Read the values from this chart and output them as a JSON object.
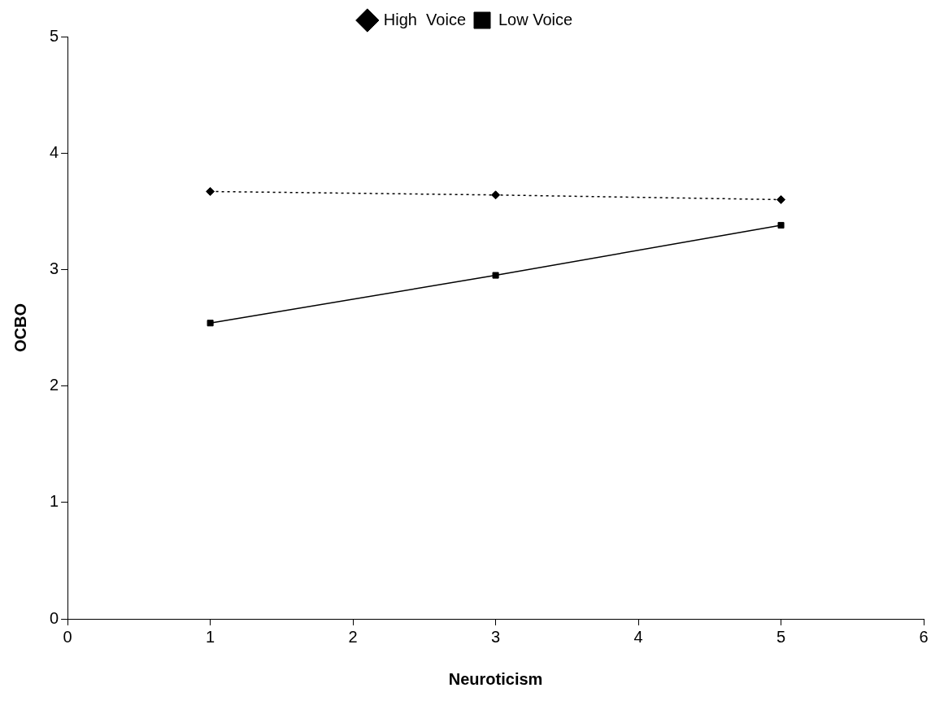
{
  "chart_data": {
    "type": "line",
    "xlabel": "Neuroticism",
    "ylabel": "OCBO",
    "xlim": [
      0,
      6
    ],
    "xticks": [
      0,
      1,
      2,
      3,
      4,
      5,
      6
    ],
    "ylim": [
      0,
      5
    ],
    "yticks": [
      0,
      1,
      2,
      3,
      4,
      5
    ],
    "grid": false,
    "legend": "top",
    "series": [
      {
        "name": "High  Voice",
        "color": "#000000",
        "x": [
          1,
          3,
          5
        ],
        "values": [
          3.67,
          3.64,
          3.6
        ],
        "marker": "diamond",
        "line_style": "dotted"
      },
      {
        "name": "Low Voice",
        "color": "#000000",
        "x": [
          1,
          3,
          5
        ],
        "values": [
          2.54,
          2.95,
          3.38
        ],
        "marker": "square",
        "line_style": "solid"
      }
    ]
  }
}
